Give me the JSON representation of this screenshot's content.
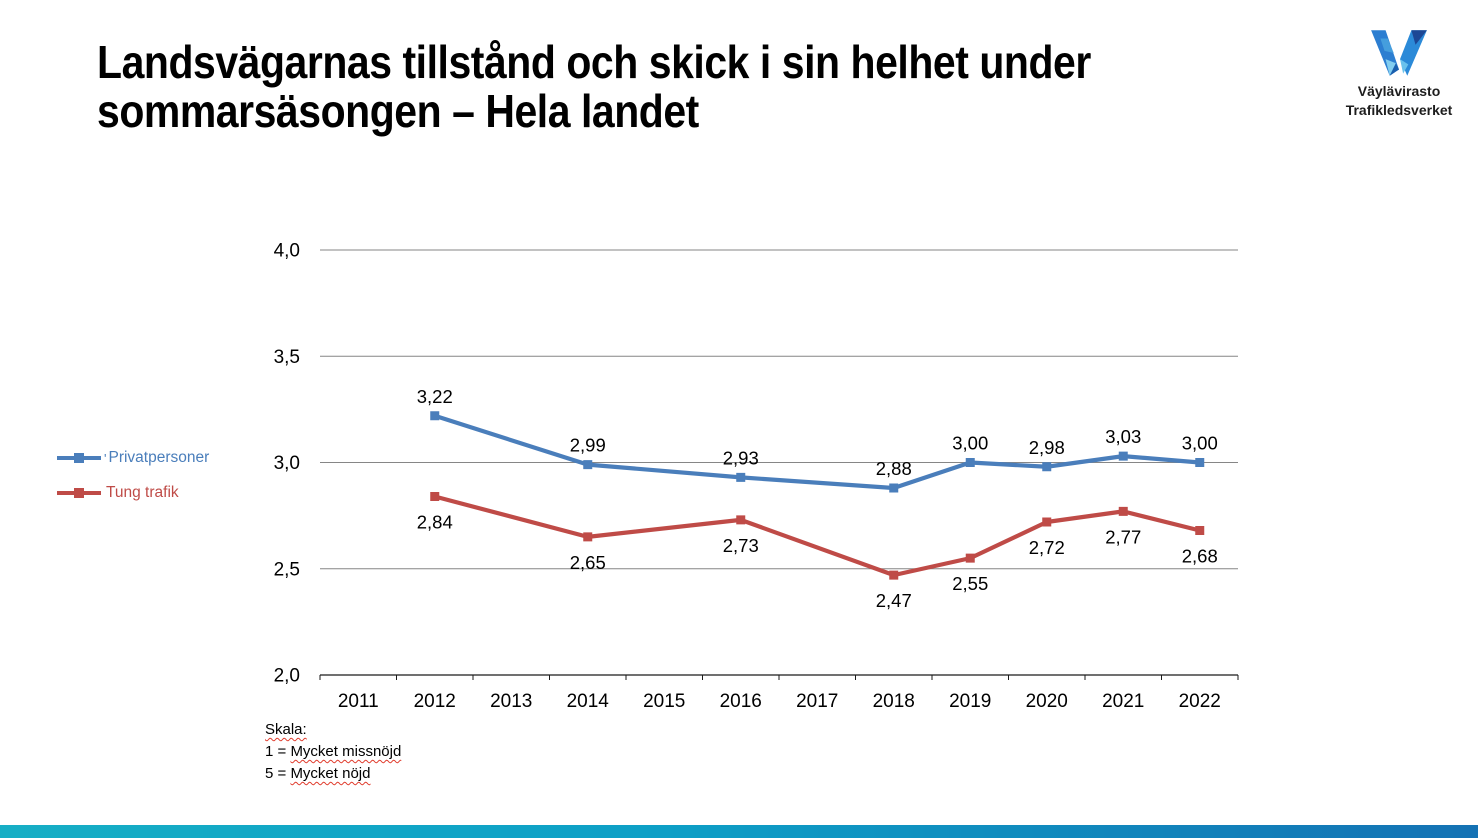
{
  "slide": {
    "title": "Landsvägarnas tillstånd och skick i sin helhet under\nsommarsäsongen – Hela landet"
  },
  "logo": {
    "line1": "Väylävirasto",
    "line2": "Trafikledsverket"
  },
  "legend": {
    "prefixes": [
      "'",
      ""
    ]
  },
  "footnote": {
    "lines": [
      {
        "pre": "",
        "wavy": "Skala:"
      },
      {
        "pre": "1 = ",
        "wavy": "Mycket missnöjd"
      },
      {
        "pre": "5 = ",
        "wavy": "Mycket nöjd"
      }
    ]
  },
  "chart_data": {
    "type": "line",
    "title": "",
    "xlabel": "",
    "ylabel": "",
    "x_categories": [
      "2011",
      "2012",
      "2013",
      "2014",
      "2015",
      "2016",
      "2017",
      "2018",
      "2019",
      "2020",
      "2021",
      "2022"
    ],
    "ylim": [
      2.0,
      4.0
    ],
    "ytick_step": 0.5,
    "ytick_labels": [
      "4,0",
      "3,5",
      "3,0",
      "2,5",
      "2,0"
    ],
    "grid": true,
    "legend_position": "left",
    "decimal_separator": ",",
    "gridline_color": "#868686",
    "axis_color": "#1a1a1a",
    "series": [
      {
        "name": "Privatpersoner",
        "color": "#4a7ebb",
        "marker": "square",
        "label_position": "above",
        "points": [
          {
            "year": "2012",
            "value": 3.22,
            "label": "3,22"
          },
          {
            "year": "2014",
            "value": 2.99,
            "label": "2,99"
          },
          {
            "year": "2016",
            "value": 2.93,
            "label": "2,93"
          },
          {
            "year": "2018",
            "value": 2.88,
            "label": "2,88"
          },
          {
            "year": "2019",
            "value": 3.0,
            "label": "3,00"
          },
          {
            "year": "2020",
            "value": 2.98,
            "label": "2,98"
          },
          {
            "year": "2021",
            "value": 3.03,
            "label": "3,03"
          },
          {
            "year": "2022",
            "value": 3.0,
            "label": "3,00"
          }
        ]
      },
      {
        "name": "Tung trafik",
        "color": "#bf4b47",
        "marker": "square",
        "label_position": "below",
        "points": [
          {
            "year": "2012",
            "value": 2.84,
            "label": "2,84"
          },
          {
            "year": "2014",
            "value": 2.65,
            "label": "2,65"
          },
          {
            "year": "2016",
            "value": 2.73,
            "label": "2,73"
          },
          {
            "year": "2018",
            "value": 2.47,
            "label": "2,47"
          },
          {
            "year": "2019",
            "value": 2.55,
            "label": "2,55"
          },
          {
            "year": "2020",
            "value": 2.72,
            "label": "2,72"
          },
          {
            "year": "2021",
            "value": 2.77,
            "label": "2,77"
          },
          {
            "year": "2022",
            "value": 2.68,
            "label": "2,68"
          }
        ]
      }
    ]
  }
}
